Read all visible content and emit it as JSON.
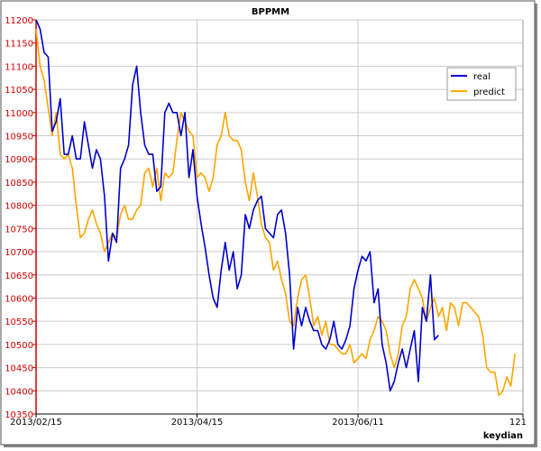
{
  "chart_data": {
    "type": "line",
    "title": "BPPMM",
    "xlabel": "keydian",
    "ylabel": "",
    "ylim": [
      10350,
      11200
    ],
    "xlim": [
      0,
      121
    ],
    "grid": true,
    "legend_position": "top-right",
    "y_ticks": [
      10350,
      10400,
      10450,
      10500,
      10550,
      10600,
      10650,
      10700,
      10750,
      10800,
      10850,
      10900,
      10950,
      11000,
      11050,
      11100,
      11150,
      11200
    ],
    "x_ticks": [
      {
        "x": 0,
        "label": "2013/02/15"
      },
      {
        "x": 40,
        "label": "2013/04/15"
      },
      {
        "x": 80,
        "label": "2013/06/11"
      },
      {
        "x": 121,
        "label": "121"
      }
    ],
    "series": [
      {
        "name": "real",
        "color": "#0000cc",
        "values": [
          11200,
          11180,
          11130,
          11120,
          10960,
          10980,
          11030,
          10910,
          10910,
          10950,
          10900,
          10900,
          10980,
          10930,
          10880,
          10920,
          10900,
          10820,
          10680,
          10740,
          10720,
          10880,
          10900,
          10930,
          11060,
          11100,
          11000,
          10930,
          10910,
          10910,
          10830,
          10840,
          11000,
          11020,
          11000,
          11000,
          10950,
          11000,
          10860,
          10920,
          10820,
          10760,
          10710,
          10650,
          10600,
          10580,
          10660,
          10720,
          10660,
          10700,
          10620,
          10650,
          10780,
          10750,
          10790,
          10810,
          10820,
          10750,
          10740,
          10730,
          10780,
          10790,
          10740,
          10650,
          10490,
          10580,
          10540,
          10580,
          10550,
          10530,
          10530,
          10500,
          10490,
          10510,
          10550,
          10500,
          10490,
          10510,
          10540,
          10620,
          10660,
          10690,
          10680,
          10700,
          10590,
          10620,
          10500,
          10460,
          10400,
          10420,
          10460,
          10490,
          10450,
          10490,
          10530,
          10420,
          10580,
          10550,
          10650,
          10510,
          10520
        ]
      },
      {
        "name": "predict",
        "color": "#ffa500",
        "values": [
          11180,
          11100,
          11070,
          11010,
          10950,
          11000,
          10910,
          10900,
          10910,
          10880,
          10800,
          10730,
          10740,
          10770,
          10790,
          10760,
          10740,
          10700,
          10720,
          10740,
          10730,
          10780,
          10800,
          10770,
          10770,
          10790,
          10800,
          10870,
          10880,
          10840,
          10880,
          10810,
          10870,
          10860,
          10870,
          10940,
          11000,
          10980,
          10960,
          10950,
          10860,
          10870,
          10860,
          10830,
          10860,
          10930,
          10950,
          11000,
          10950,
          10940,
          10940,
          10920,
          10850,
          10810,
          10870,
          10820,
          10760,
          10730,
          10720,
          10660,
          10680,
          10640,
          10610,
          10550,
          10540,
          10600,
          10640,
          10650,
          10600,
          10540,
          10560,
          10520,
          10550,
          10500,
          10500,
          10490,
          10480,
          10480,
          10500,
          10460,
          10470,
          10480,
          10470,
          10510,
          10530,
          10560,
          10550,
          10530,
          10480,
          10450,
          10480,
          10540,
          10560,
          10620,
          10640,
          10620,
          10600,
          10550,
          10580,
          10600,
          10560,
          10580,
          10530,
          10590,
          10580,
          10540,
          10590,
          10590,
          10580,
          10570,
          10560,
          10520,
          10450,
          10440,
          10440,
          10390,
          10400,
          10430,
          10410,
          10480
        ]
      }
    ]
  }
}
